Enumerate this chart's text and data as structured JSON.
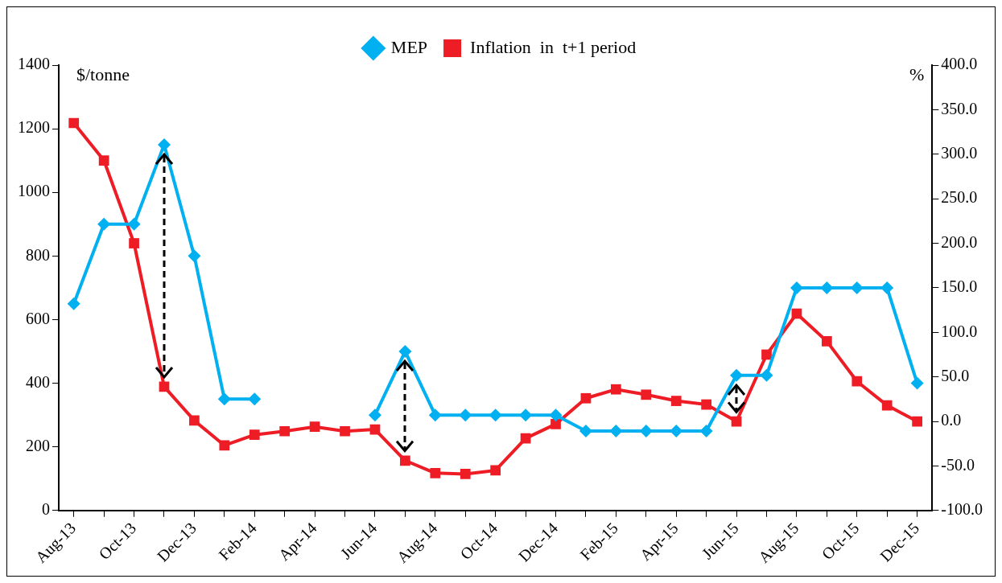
{
  "chart_data": {
    "type": "line",
    "ylabel": "$/tonne",
    "y2label": "%",
    "categories": [
      "Aug-13",
      null,
      "Oct-13",
      null,
      "Dec-13",
      null,
      "Feb-14",
      null,
      "Apr-14",
      null,
      "Jun-14",
      null,
      "Aug-14",
      null,
      "Oct-14",
      null,
      "Dec-14",
      null,
      "Feb-15",
      null,
      "Apr-15",
      null,
      "Jun-15",
      null,
      "Aug-15",
      null,
      "Oct-15",
      null,
      "Dec-15"
    ],
    "series": [
      {
        "name": "MEP",
        "color": "#00b0f0",
        "marker": "diamond",
        "values": [
          650,
          900,
          900,
          1150,
          800,
          350,
          350,
          null,
          null,
          null,
          300,
          500,
          300,
          300,
          300,
          300,
          300,
          250,
          250,
          250,
          250,
          250,
          425,
          425,
          700,
          700,
          700,
          700,
          400
        ]
      },
      {
        "name": "Inflation  in  t+1 period",
        "color": "#ee1c25",
        "marker": "square",
        "axis": "y2",
        "values": [
          335,
          293,
          200,
          39,
          1,
          -27,
          -15,
          -11,
          -6,
          -11,
          -9,
          -44,
          -58,
          -59,
          -55,
          -19,
          -3,
          26,
          36,
          30,
          23,
          19,
          0,
          75,
          121,
          90,
          45,
          18,
          0
        ]
      }
    ],
    "ylim": [
      0,
      1400
    ],
    "yticks": [
      0,
      200,
      400,
      600,
      800,
      1000,
      1200,
      1400
    ],
    "y2lim": [
      -100,
      400
    ],
    "y2ticks": [
      {
        "value": -100,
        "label": "-100.0"
      },
      {
        "value": -50,
        "label": "-50.0"
      },
      {
        "value": 0,
        "label": "0.0"
      },
      {
        "value": 50,
        "label": "50.0"
      },
      {
        "value": 100,
        "label": "100.0"
      },
      {
        "value": 150,
        "label": "150.0"
      },
      {
        "value": 200,
        "label": "200.0"
      },
      {
        "value": 250,
        "label": "250.0"
      },
      {
        "value": 300,
        "label": "300.0"
      },
      {
        "value": 350,
        "label": "350.0"
      },
      {
        "value": 400,
        "label": "400.0"
      }
    ],
    "legend": "top",
    "line_style": "solid"
  }
}
